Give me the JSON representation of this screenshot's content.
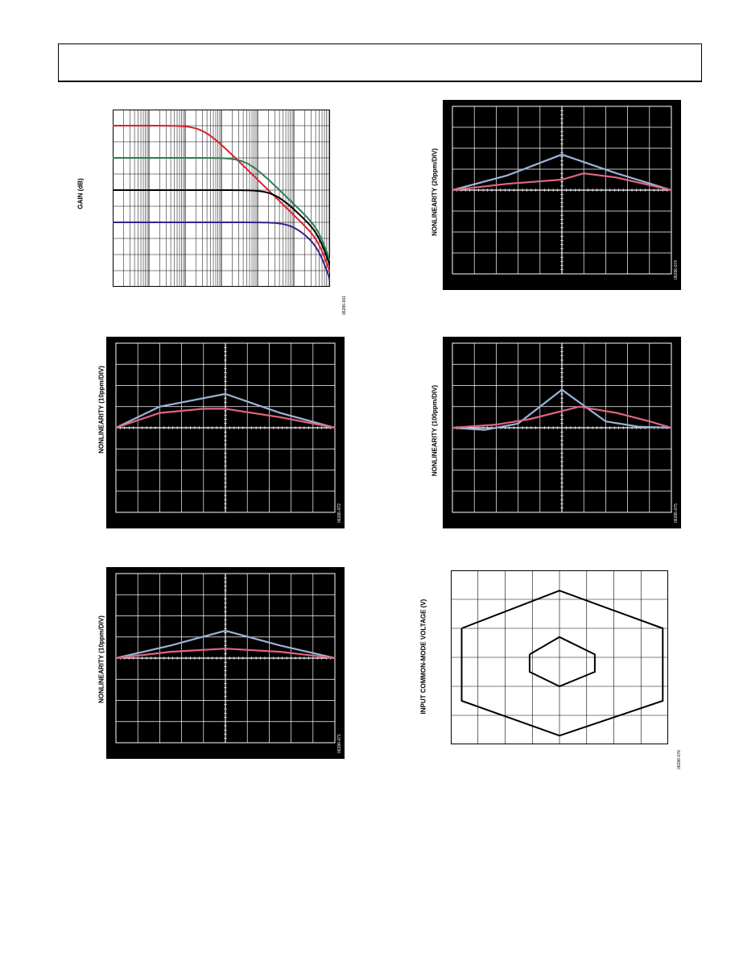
{
  "page": {
    "header": ""
  },
  "figures": [
    {
      "id": "fig-gain",
      "ylabel": "GAIN (dB)",
      "figure_id": "06286-001"
    },
    {
      "id": "fig-nl-a",
      "ylabel": "NONLINEARITY (20ppm/DIV)",
      "figure_id": "06286-074"
    },
    {
      "id": "fig-nl-b",
      "ylabel": "NONLINEARITY (10ppm/DIV)",
      "figure_id": "06286-072"
    },
    {
      "id": "fig-nl-c",
      "ylabel": "NONLINEARITY (100ppm/DIV)",
      "figure_id": "06286-075"
    },
    {
      "id": "fig-nl-d",
      "ylabel": "NONLINEARITY (10ppm/DIV)",
      "figure_id": "06286-071"
    },
    {
      "id": "fig-cm",
      "ylabel": "INPUT COMMON-MODE VOLTAGE (V)",
      "figure_id": "06286-076"
    }
  ],
  "colors": {
    "red": "#d9222e",
    "green": "#2e7d4f",
    "black": "#000000",
    "purple": "#3b1f8f",
    "blue_trace": "#9bb4d9",
    "pink_trace": "#e0667f"
  },
  "chart_data": [
    {
      "type": "line",
      "title": "",
      "xlabel": "",
      "ylabel": "GAIN (dB)",
      "x_scale": "log",
      "grid": true,
      "xlim": [
        1,
        1000000
      ],
      "ylim": [
        0,
        11
      ],
      "series": [
        {
          "name": "",
          "color": "red",
          "level": 10,
          "corner": 300
        },
        {
          "name": "",
          "color": "green",
          "level": 8,
          "corner": 5000
        },
        {
          "name": "",
          "color": "black",
          "level": 6,
          "corner": 30000
        },
        {
          "name": "",
          "color": "purple",
          "level": 4,
          "corner": 100000
        }
      ]
    },
    {
      "type": "line",
      "title": "",
      "ylabel": "NONLINEARITY (20ppm/DIV)",
      "grid": true,
      "xlim": [
        -5,
        5
      ],
      "ylim": [
        -4,
        4
      ],
      "series": [
        {
          "name": "",
          "color": "blue_trace",
          "x": [
            -5,
            -2.5,
            0,
            2.5,
            5
          ],
          "y": [
            0,
            0.7,
            1.7,
            0.8,
            0
          ]
        },
        {
          "name": "",
          "color": "pink_trace",
          "x": [
            -5,
            -2.5,
            0,
            1,
            2.5,
            5
          ],
          "y": [
            0,
            0.3,
            0.5,
            0.8,
            0.6,
            0
          ]
        }
      ]
    },
    {
      "type": "line",
      "title": "",
      "ylabel": "NONLINEARITY (10ppm/DIV)",
      "grid": true,
      "xlim": [
        -5,
        5
      ],
      "ylim": [
        -4,
        4
      ],
      "series": [
        {
          "name": "",
          "color": "blue_trace",
          "x": [
            -5,
            -3,
            0,
            2.5,
            5
          ],
          "y": [
            0,
            1.0,
            1.6,
            0.7,
            0
          ]
        },
        {
          "name": "",
          "color": "pink_trace",
          "x": [
            -5,
            -3,
            -1,
            0,
            2.5,
            5
          ],
          "y": [
            0,
            0.7,
            0.9,
            0.9,
            0.5,
            0
          ]
        }
      ]
    },
    {
      "type": "line",
      "title": "",
      "ylabel": "NONLINEARITY (100ppm/DIV)",
      "grid": true,
      "xlim": [
        -5,
        5
      ],
      "ylim": [
        -4,
        4
      ],
      "series": [
        {
          "name": "",
          "color": "blue_trace",
          "x": [
            -5,
            -3.5,
            -2,
            0,
            2,
            3.5,
            5
          ],
          "y": [
            0,
            -0.1,
            0.2,
            1.8,
            0.3,
            0.05,
            0
          ]
        },
        {
          "name": "",
          "color": "pink_trace",
          "x": [
            -5,
            -3,
            -1.5,
            0.8,
            2.5,
            4,
            5
          ],
          "y": [
            0,
            0.15,
            0.4,
            1.0,
            0.7,
            0.3,
            0
          ]
        }
      ]
    },
    {
      "type": "line",
      "title": "",
      "ylabel": "NONLINEARITY (10ppm/DIV)",
      "grid": true,
      "xlim": [
        -5,
        5
      ],
      "ylim": [
        -4,
        4
      ],
      "series": [
        {
          "name": "",
          "color": "blue_trace",
          "x": [
            -5,
            -2.5,
            0,
            2.5,
            5
          ],
          "y": [
            0,
            0.6,
            1.3,
            0.6,
            0
          ]
        },
        {
          "name": "",
          "color": "pink_trace",
          "x": [
            -5,
            -2.5,
            0,
            2.5,
            5
          ],
          "y": [
            0,
            0.3,
            0.45,
            0.3,
            0
          ]
        }
      ]
    },
    {
      "type": "line",
      "title": "",
      "ylabel": "INPUT COMMON-MODE VOLTAGE (V)",
      "grid": true,
      "xlim": [
        -4,
        4
      ],
      "ylim": [
        -3,
        3
      ],
      "series": [
        {
          "name": "",
          "color": "black",
          "x": [
            -3.6,
            0,
            3.8,
            3.8,
            0,
            -3.6,
            -3.6
          ],
          "y": [
            1.0,
            2.3,
            1.0,
            -1.5,
            -2.7,
            -1.5,
            1.0
          ]
        },
        {
          "name": "",
          "color": "black",
          "x": [
            -1.1,
            0,
            1.3,
            1.3,
            0,
            -1.1,
            -1.1
          ],
          "y": [
            0.1,
            0.7,
            0.1,
            -0.5,
            -1.0,
            -0.5,
            0.1
          ]
        }
      ]
    }
  ]
}
